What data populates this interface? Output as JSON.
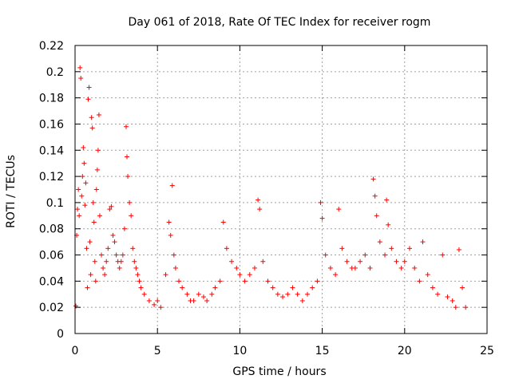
{
  "chart_data": {
    "type": "scatter",
    "title": "Day 061 of 2018, Rate Of TEC Index for receiver rogm",
    "xlabel": "GPS time / hours",
    "ylabel": "ROTI / TECUs",
    "xlim": [
      0,
      25
    ],
    "ylim": [
      0,
      0.22
    ],
    "xticks": [
      0,
      5,
      10,
      15,
      20,
      25
    ],
    "xtick_labels": [
      "0",
      "5",
      "10",
      "15",
      "20",
      "25"
    ],
    "yticks": [
      0,
      0.02,
      0.04,
      0.06,
      0.08,
      0.1,
      0.12,
      0.14,
      0.16,
      0.18,
      0.2,
      0.22
    ],
    "ytick_labels": [
      "0",
      "0.02",
      "0.04",
      "0.06",
      "0.08",
      "0.1",
      "0.12",
      "0.14",
      "0.16",
      "0.18",
      "0.2",
      "0.22"
    ],
    "grid": true,
    "marker": "+",
    "marker_color": "#ff0000",
    "series": [
      {
        "name": "ROTI",
        "points": [
          [
            0.05,
            0.021
          ],
          [
            0.1,
            0.075
          ],
          [
            0.15,
            0.095
          ],
          [
            0.2,
            0.11
          ],
          [
            0.25,
            0.09
          ],
          [
            0.3,
            0.203
          ],
          [
            0.35,
            0.195
          ],
          [
            0.4,
            0.105
          ],
          [
            0.45,
            0.12
          ],
          [
            0.5,
            0.142
          ],
          [
            0.55,
            0.13
          ],
          [
            0.6,
            0.098
          ],
          [
            0.65,
            0.115
          ],
          [
            0.7,
            0.065
          ],
          [
            0.75,
            0.035
          ],
          [
            0.8,
            0.179
          ],
          [
            0.85,
            0.188
          ],
          [
            0.9,
            0.07
          ],
          [
            0.95,
            0.045
          ],
          [
            1.0,
            0.165
          ],
          [
            1.05,
            0.157
          ],
          [
            1.1,
            0.1
          ],
          [
            1.15,
            0.085
          ],
          [
            1.2,
            0.055
          ],
          [
            1.25,
            0.04
          ],
          [
            1.3,
            0.11
          ],
          [
            1.35,
            0.125
          ],
          [
            1.4,
            0.14
          ],
          [
            1.45,
            0.167
          ],
          [
            1.5,
            0.09
          ],
          [
            1.6,
            0.06
          ],
          [
            1.7,
            0.05
          ],
          [
            1.8,
            0.045
          ],
          [
            1.9,
            0.055
          ],
          [
            2.0,
            0.065
          ],
          [
            2.1,
            0.095
          ],
          [
            2.2,
            0.097
          ],
          [
            2.3,
            0.075
          ],
          [
            2.4,
            0.07
          ],
          [
            2.5,
            0.06
          ],
          [
            2.6,
            0.055
          ],
          [
            2.7,
            0.05
          ],
          [
            2.8,
            0.055
          ],
          [
            2.9,
            0.06
          ],
          [
            3.0,
            0.08
          ],
          [
            3.1,
            0.158
          ],
          [
            3.15,
            0.135
          ],
          [
            3.2,
            0.12
          ],
          [
            3.3,
            0.1
          ],
          [
            3.4,
            0.09
          ],
          [
            3.5,
            0.065
          ],
          [
            3.6,
            0.055
          ],
          [
            3.7,
            0.05
          ],
          [
            3.8,
            0.045
          ],
          [
            3.9,
            0.04
          ],
          [
            4.0,
            0.035
          ],
          [
            4.2,
            0.03
          ],
          [
            4.5,
            0.025
          ],
          [
            4.8,
            0.022
          ],
          [
            5.0,
            0.025
          ],
          [
            5.2,
            0.02
          ],
          [
            5.5,
            0.045
          ],
          [
            5.7,
            0.085
          ],
          [
            5.8,
            0.075
          ],
          [
            5.9,
            0.113
          ],
          [
            6.0,
            0.06
          ],
          [
            6.1,
            0.05
          ],
          [
            6.3,
            0.04
          ],
          [
            6.5,
            0.035
          ],
          [
            6.8,
            0.03
          ],
          [
            7.0,
            0.025
          ],
          [
            7.2,
            0.025
          ],
          [
            7.5,
            0.03
          ],
          [
            7.8,
            0.028
          ],
          [
            8.0,
            0.025
          ],
          [
            8.3,
            0.03
          ],
          [
            8.5,
            0.035
          ],
          [
            8.8,
            0.04
          ],
          [
            9.0,
            0.085
          ],
          [
            9.2,
            0.065
          ],
          [
            9.5,
            0.055
          ],
          [
            9.8,
            0.05
          ],
          [
            10.0,
            0.045
          ],
          [
            10.3,
            0.04
          ],
          [
            10.6,
            0.045
          ],
          [
            10.9,
            0.05
          ],
          [
            11.1,
            0.102
          ],
          [
            11.2,
            0.095
          ],
          [
            11.4,
            0.055
          ],
          [
            11.7,
            0.04
          ],
          [
            12.0,
            0.035
          ],
          [
            12.3,
            0.03
          ],
          [
            12.6,
            0.028
          ],
          [
            12.9,
            0.03
          ],
          [
            13.2,
            0.035
          ],
          [
            13.5,
            0.03
          ],
          [
            13.8,
            0.025
          ],
          [
            14.1,
            0.03
          ],
          [
            14.4,
            0.035
          ],
          [
            14.7,
            0.04
          ],
          [
            14.9,
            0.1
          ],
          [
            15.0,
            0.088
          ],
          [
            15.2,
            0.06
          ],
          [
            15.5,
            0.05
          ],
          [
            15.8,
            0.045
          ],
          [
            16.0,
            0.095
          ],
          [
            16.2,
            0.065
          ],
          [
            16.5,
            0.055
          ],
          [
            16.8,
            0.05
          ],
          [
            17.0,
            0.05
          ],
          [
            17.3,
            0.055
          ],
          [
            17.6,
            0.06
          ],
          [
            17.9,
            0.05
          ],
          [
            18.1,
            0.118
          ],
          [
            18.2,
            0.105
          ],
          [
            18.3,
            0.09
          ],
          [
            18.5,
            0.07
          ],
          [
            18.8,
            0.06
          ],
          [
            18.9,
            0.102
          ],
          [
            19.0,
            0.083
          ],
          [
            19.2,
            0.065
          ],
          [
            19.5,
            0.055
          ],
          [
            19.8,
            0.05
          ],
          [
            20.0,
            0.055
          ],
          [
            20.3,
            0.065
          ],
          [
            20.6,
            0.05
          ],
          [
            20.9,
            0.04
          ],
          [
            21.1,
            0.07
          ],
          [
            21.4,
            0.045
          ],
          [
            21.7,
            0.035
          ],
          [
            22.0,
            0.03
          ],
          [
            22.3,
            0.06
          ],
          [
            22.6,
            0.028
          ],
          [
            22.9,
            0.025
          ],
          [
            23.1,
            0.02
          ],
          [
            23.3,
            0.064
          ],
          [
            23.5,
            0.035
          ],
          [
            23.7,
            0.02
          ]
        ]
      }
    ]
  }
}
